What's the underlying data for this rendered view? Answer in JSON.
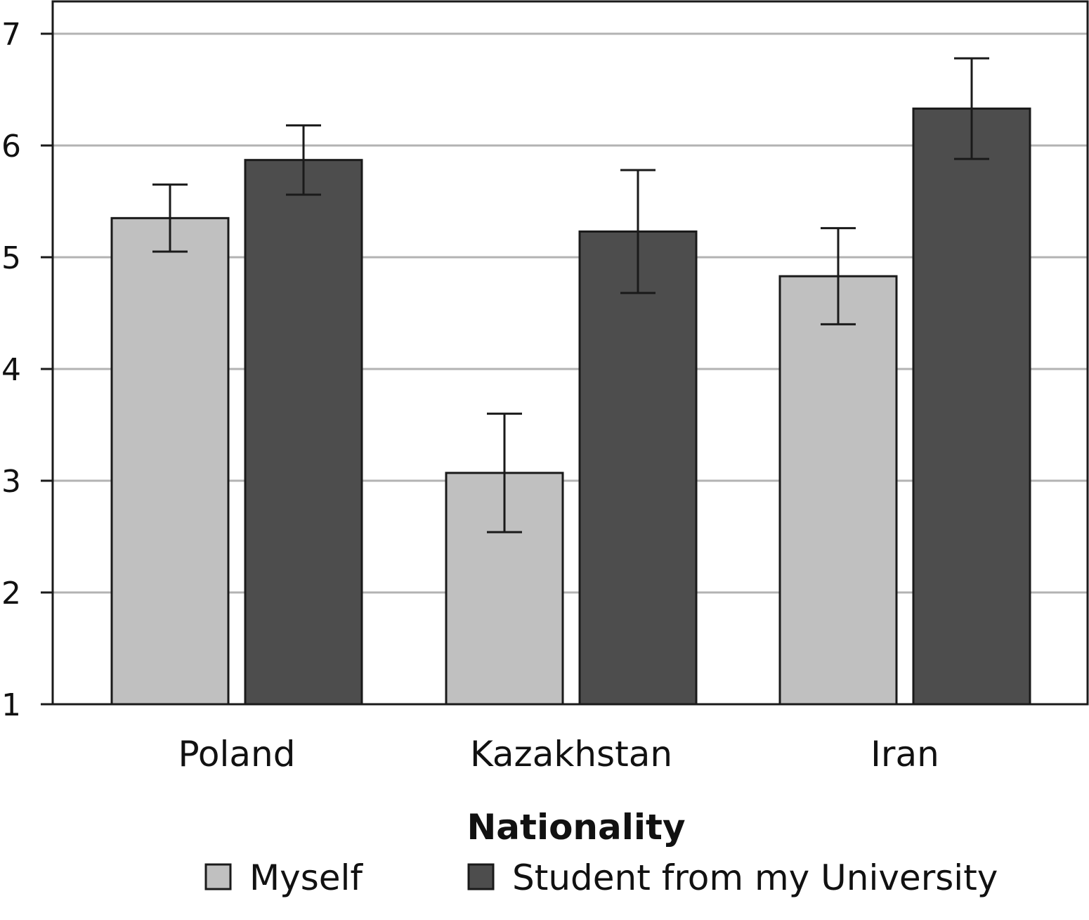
{
  "chart_data": {
    "type": "bar",
    "categories": [
      "Poland",
      "Kazakhstan",
      "Iran"
    ],
    "series": [
      {
        "name": "Myself",
        "values": [
          5.35,
          3.07,
          4.83
        ],
        "error": [
          0.3,
          0.53,
          0.43
        ],
        "color": "#c0c0c0"
      },
      {
        "name": "Student from my University",
        "values": [
          5.87,
          5.23,
          6.33
        ],
        "error": [
          0.31,
          0.55,
          0.45
        ],
        "color": "#4d4d4d"
      }
    ],
    "xlabel": "Nationality",
    "ylabel": "",
    "ylim": [
      1,
      7
    ],
    "yticks": [
      1,
      2,
      3,
      4,
      5,
      6,
      7
    ],
    "grid": true,
    "legend_position": "bottom"
  }
}
